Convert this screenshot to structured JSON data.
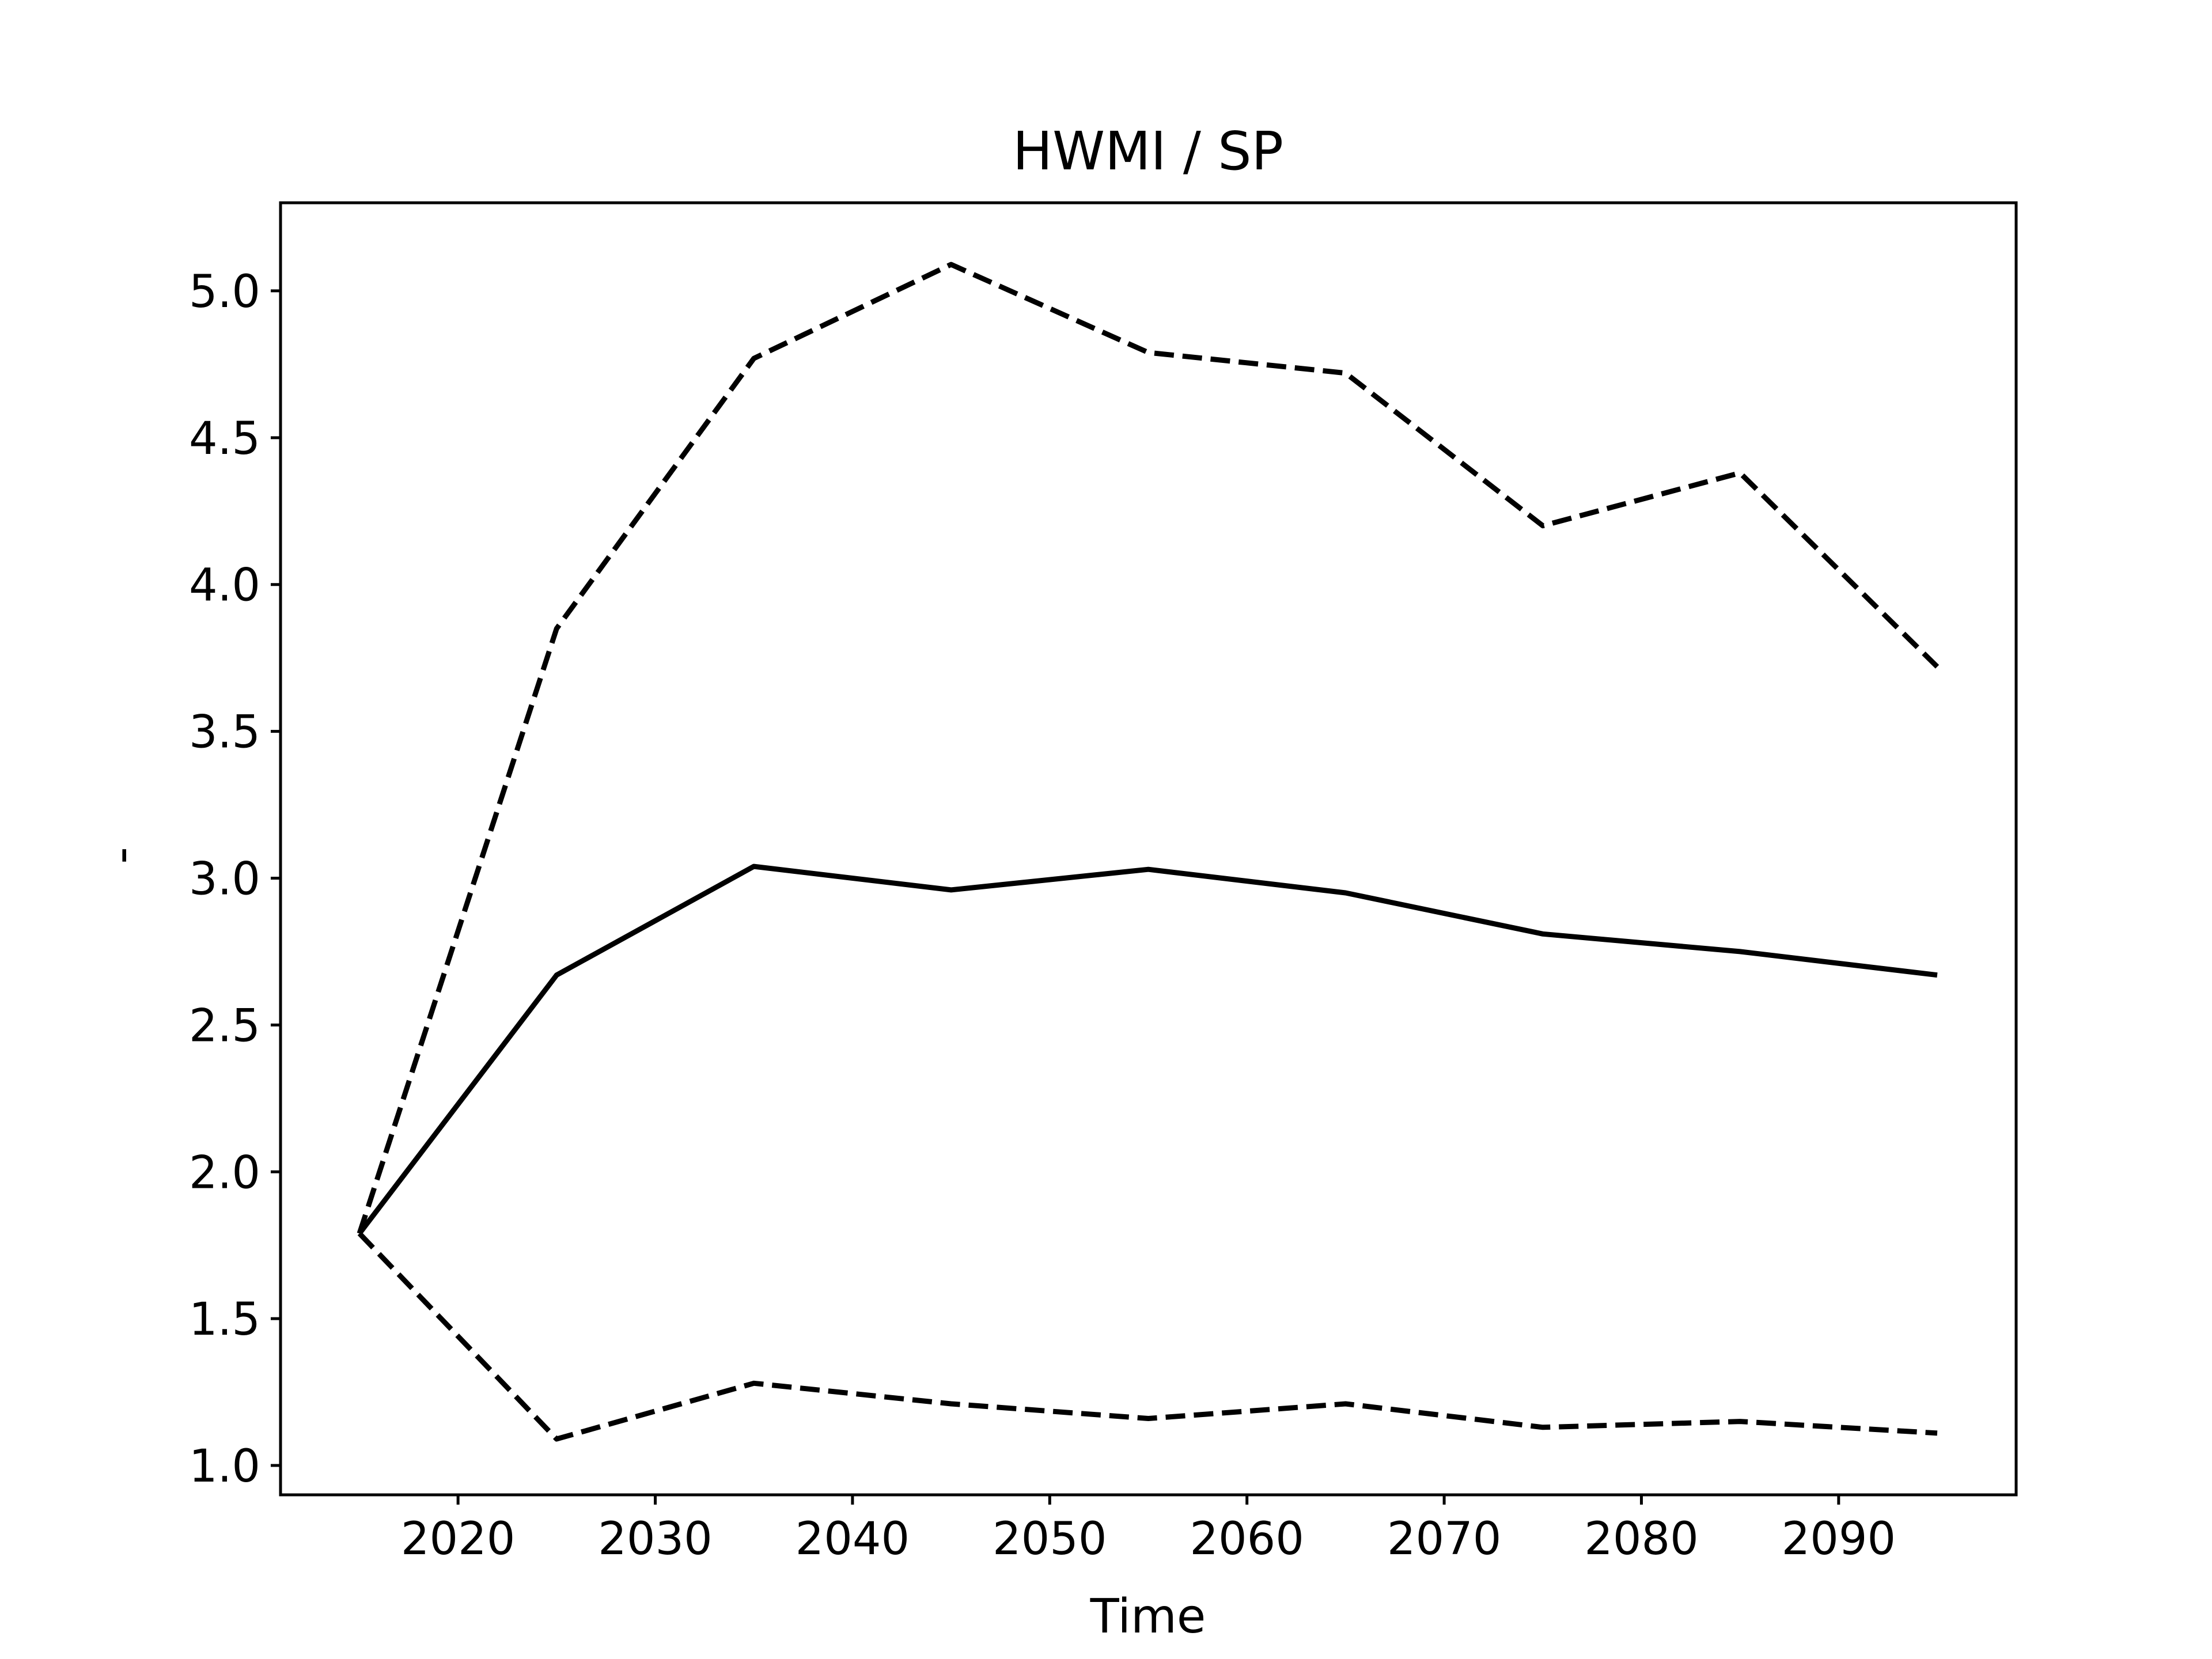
{
  "chart_data": {
    "type": "line",
    "title": "HWMI / SP",
    "xlabel": "Time",
    "ylabel": "-",
    "x": [
      2015,
      2025,
      2035,
      2045,
      2055,
      2065,
      2075,
      2085,
      2095
    ],
    "xlim": [
      2011,
      2099
    ],
    "ylim": [
      0.9,
      5.3
    ],
    "xticks": [
      2020,
      2030,
      2040,
      2050,
      2060,
      2070,
      2080,
      2090
    ],
    "yticks": [
      "1.0",
      "1.5",
      "2.0",
      "2.5",
      "3.0",
      "3.5",
      "4.0",
      "4.5",
      "5.0"
    ],
    "grid": false,
    "legend": false,
    "series": [
      {
        "style": "dashed",
        "color": "#000000",
        "values": [
          1.79,
          3.85,
          4.77,
          5.09,
          4.79,
          4.72,
          4.2,
          4.38,
          3.72
        ]
      },
      {
        "style": "solid",
        "color": "#000000",
        "values": [
          1.79,
          2.67,
          3.04,
          2.96,
          3.03,
          2.95,
          2.81,
          2.75,
          2.67
        ]
      },
      {
        "style": "dashed",
        "color": "#000000",
        "values": [
          1.79,
          1.09,
          1.28,
          1.21,
          1.16,
          1.21,
          1.13,
          1.15,
          1.11
        ]
      }
    ]
  }
}
